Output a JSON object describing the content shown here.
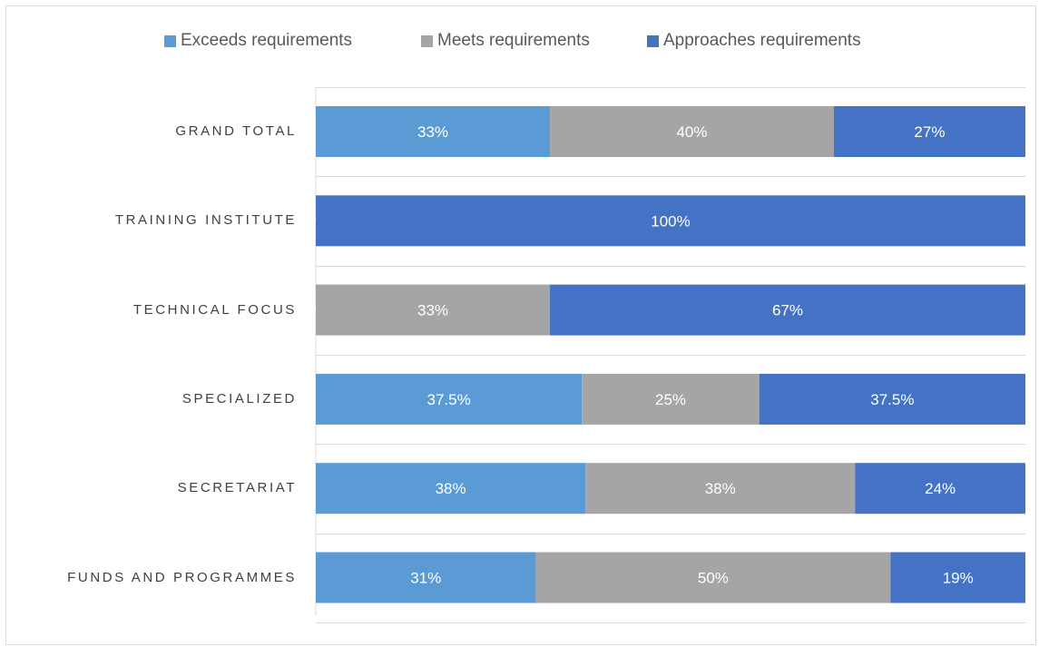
{
  "chart_data": {
    "type": "bar",
    "orientation": "horizontal",
    "stacked": "100%",
    "categories": [
      "GRAND TOTAL",
      "TRAINING INSTITUTE",
      "TECHNICAL FOCUS",
      "SPECIALIZED",
      "SECRETARIAT",
      "FUNDS AND PROGRAMMES"
    ],
    "series": [
      {
        "name": "Exceeds requirements",
        "color": "#5b9bd5",
        "values": [
          33,
          0,
          0,
          37.5,
          38,
          31
        ],
        "labels": [
          "33%",
          "%",
          "%",
          "37.5%",
          "38%",
          "31%"
        ]
      },
      {
        "name": "Meets requirements",
        "color": "#a5a5a5",
        "values": [
          40,
          0,
          33,
          25,
          38,
          50
        ],
        "labels": [
          "40%",
          "",
          "33%",
          "25%",
          "38%",
          "50%"
        ]
      },
      {
        "name": "Approaches requirements",
        "color": "#4472c4",
        "values": [
          27,
          100,
          67,
          37.5,
          24,
          19
        ],
        "labels": [
          "27%",
          "100%",
          "67%",
          "37.5%",
          "24%",
          "19%"
        ]
      }
    ],
    "xlim": [
      0,
      100
    ],
    "grid": "horizontal category separators",
    "legend": "top-center"
  }
}
